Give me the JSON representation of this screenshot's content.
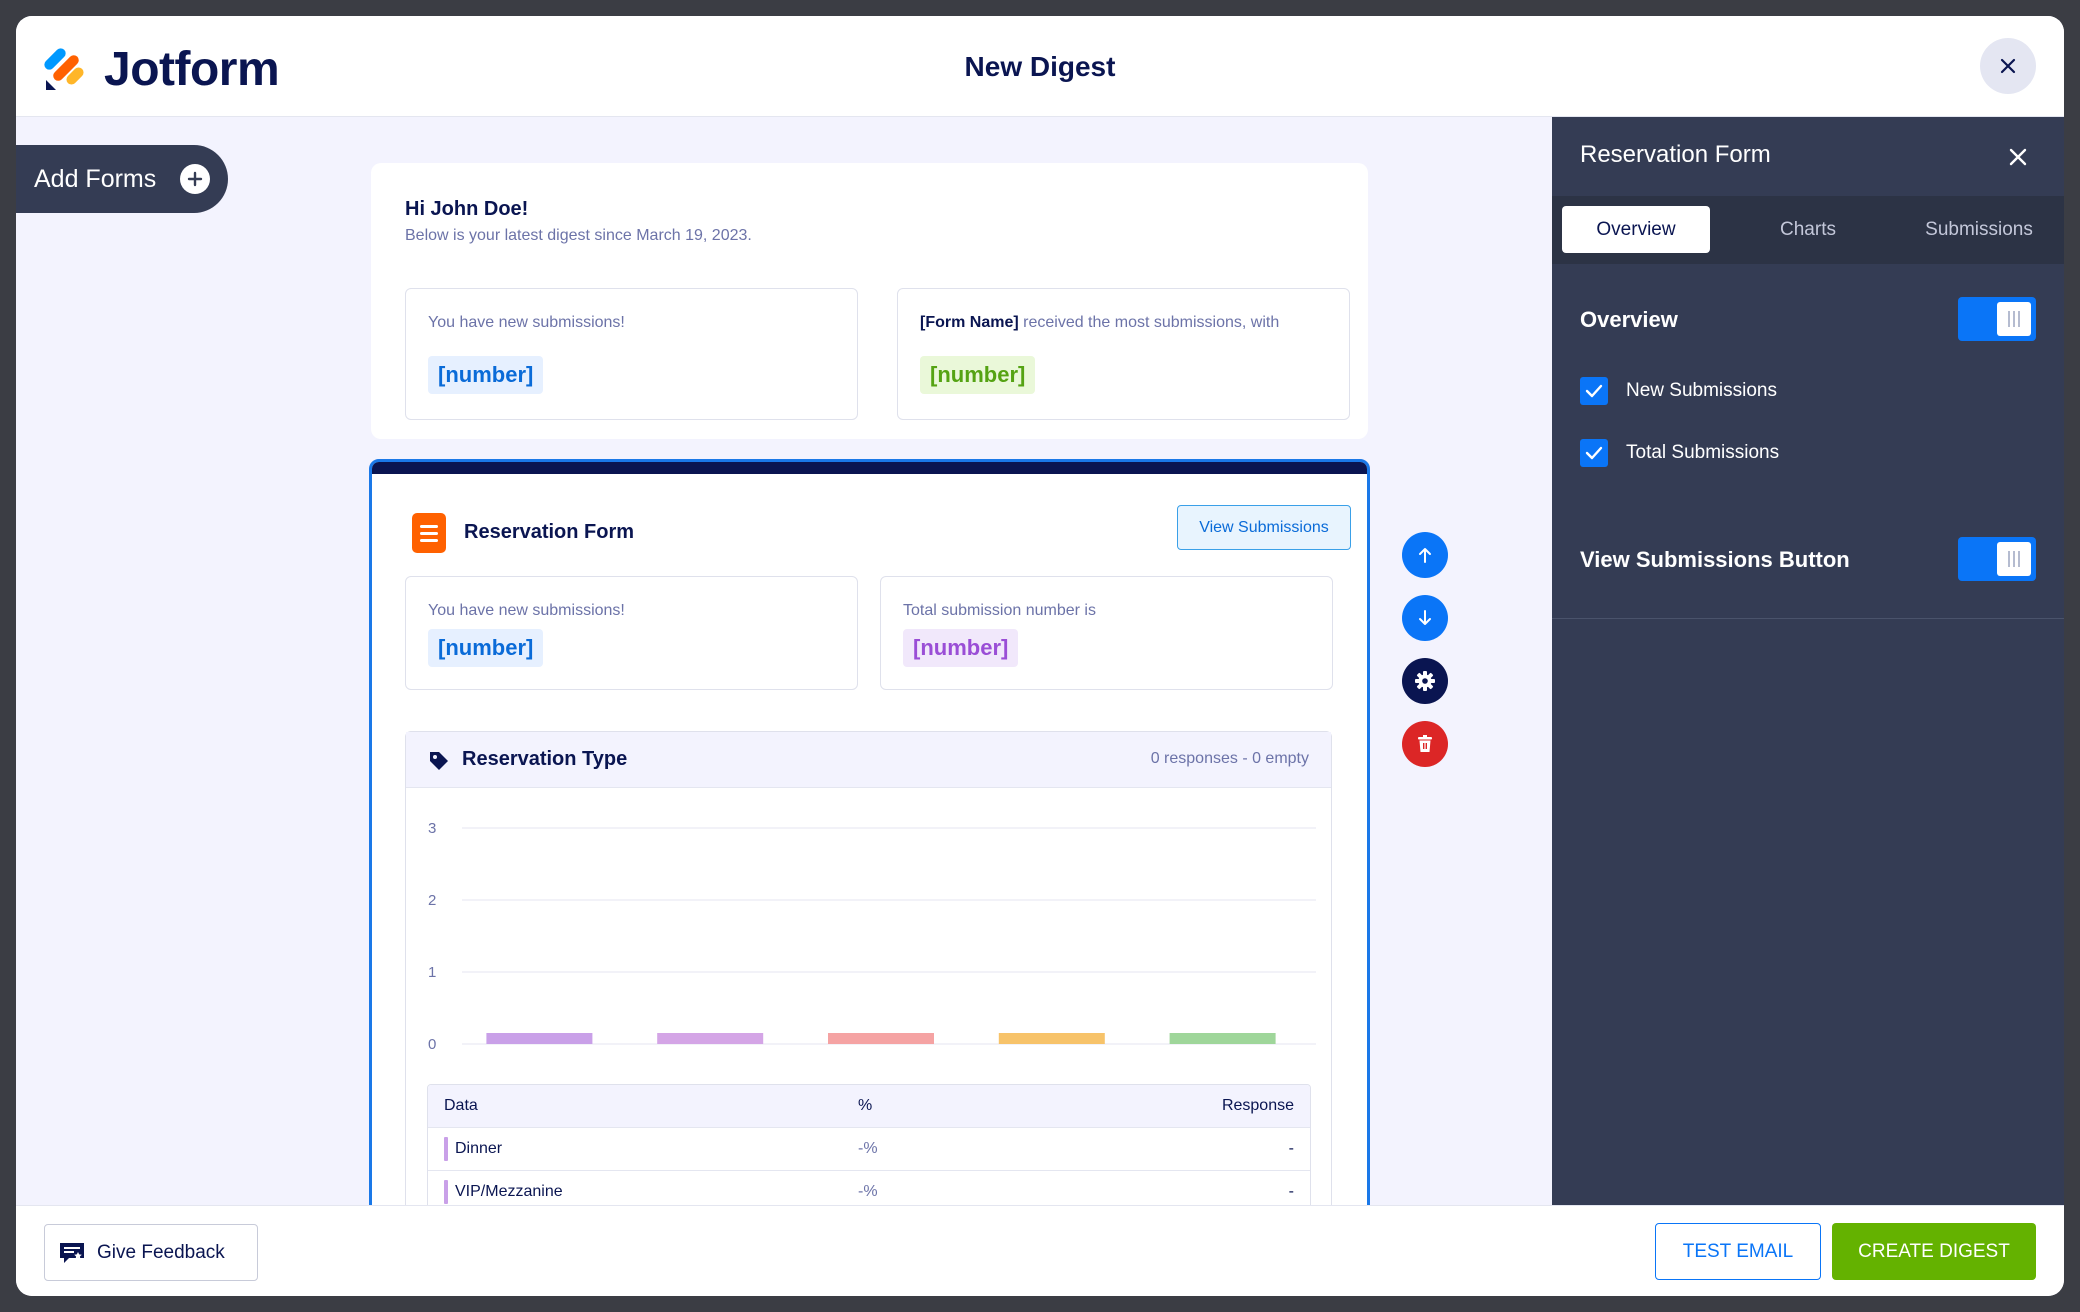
{
  "header": {
    "brand": "Jotform",
    "title": "New Digest",
    "close_icon": "close-icon"
  },
  "sidebar": {
    "add_forms_label": "Add Forms",
    "add_icon": "plus-circle-icon"
  },
  "intro": {
    "greeting": "Hi John Doe!",
    "subtitle": "Below is your latest digest since March 19, 2023.",
    "box1": {
      "text": "You have new submissions!",
      "value": "[number]"
    },
    "box2": {
      "form_name": "[Form Name]",
      "text": " received the most submissions, with",
      "value": "[number]"
    }
  },
  "form_card": {
    "title": "Reservation Form",
    "view_button": "View Submissions",
    "box1": {
      "text": "You have new submissions!",
      "value": "[number]"
    },
    "box2": {
      "text": "Total submission number is",
      "value": "[number]"
    },
    "chart": {
      "title": "Reservation Type",
      "meta": "0 responses - 0 empty"
    },
    "table": {
      "headers": {
        "data": "Data",
        "percent": "%",
        "response": "Response"
      },
      "rows": [
        {
          "label": "Dinner",
          "percent": "-%",
          "response": "-",
          "color": "#c9a0e8"
        },
        {
          "label": "VIP/Mezzanine",
          "percent": "-%",
          "response": "-",
          "color": "#c9a0e8"
        }
      ]
    }
  },
  "chart_data": {
    "type": "bar",
    "categories": [
      "",
      "",
      "",
      "",
      ""
    ],
    "values": [
      0,
      0,
      0,
      0,
      0
    ],
    "colors": [
      "#c9a0e8",
      "#d4a5e6",
      "#f5a3a3",
      "#f7c36a",
      "#9fd69a"
    ],
    "title": "Reservation Type",
    "y_ticks": [
      "0",
      "1",
      "2",
      "3"
    ],
    "ylim": [
      0,
      3
    ],
    "grid": true
  },
  "controls": {
    "move_up_icon": "arrow-up-icon",
    "move_down_icon": "arrow-down-icon",
    "settings_icon": "gear-icon",
    "delete_icon": "trash-icon"
  },
  "right_panel": {
    "title": "Reservation Form",
    "tabs": [
      {
        "label": "Overview",
        "active": true
      },
      {
        "label": "Charts",
        "active": false
      },
      {
        "label": "Submissions",
        "active": false
      }
    ],
    "overview_label": "Overview",
    "overview_enabled": true,
    "checkboxes": [
      {
        "label": "New Submissions",
        "checked": true
      },
      {
        "label": "Total Submissions",
        "checked": true
      }
    ],
    "view_submissions_label": "View Submissions Button",
    "view_submissions_enabled": true
  },
  "footer": {
    "feedback_label": "Give Feedback",
    "test_email_label": "TEST EMAIL",
    "create_digest_label": "CREATE DIGEST"
  }
}
